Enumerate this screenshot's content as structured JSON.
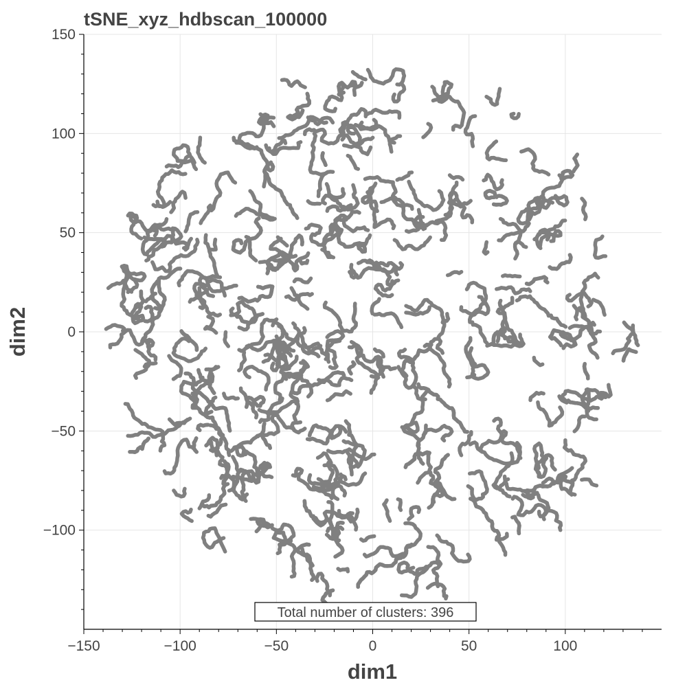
{
  "chart_data": {
    "type": "scatter",
    "title": "tSNE_xyz_hdbscan_100000",
    "xlabel": "dim1",
    "ylabel": "dim2",
    "xlim": [
      -150,
      150
    ],
    "ylim": [
      -150,
      150
    ],
    "xticks": [
      -150,
      -100,
      -50,
      0,
      50,
      100
    ],
    "yticks": [
      -100,
      -50,
      0,
      50,
      100,
      150
    ],
    "x_tick_labels": [
      "−150",
      "−100",
      "−50",
      "0",
      "50",
      "100"
    ],
    "y_tick_labels": [
      "−100",
      "−50",
      "0",
      "50",
      "100",
      "150"
    ],
    "grid": true,
    "point_color": "#808080",
    "annotation": "Total number of clusters: 396",
    "points": "approximately 100000 points forming a roughly circular cloud of radius ~135 centered near (0, 0), arranged in many small elongated clusters"
  }
}
